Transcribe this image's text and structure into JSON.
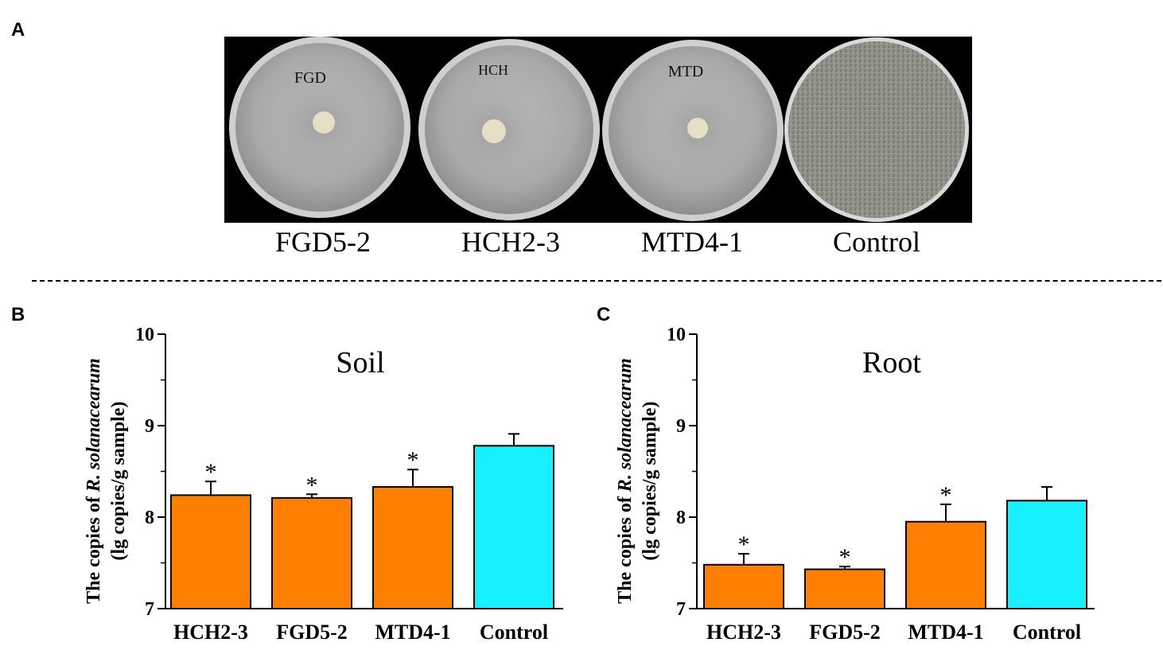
{
  "panel_a": {
    "letter": "A",
    "plate_marks": [
      "FGD",
      "HCH",
      "MTD",
      ""
    ],
    "labels": [
      "FGD5-2",
      "HCH2-3",
      "MTD4-1",
      "Control"
    ]
  },
  "panel_b": {
    "letter": "B"
  },
  "panel_c": {
    "letter": "C"
  },
  "chart_data": [
    {
      "type": "bar",
      "title": "Soil",
      "ylabel_line1_prefix": "The copies of ",
      "ylabel_line1_italic": "R. solanacearum",
      "ylabel_line2": "(lg copies/g sample)",
      "categories": [
        "HCH2-3",
        "FGD5-2",
        "MTD4-1",
        "Control"
      ],
      "values": [
        8.24,
        8.21,
        8.33,
        8.78
      ],
      "errors": [
        0.15,
        0.04,
        0.19,
        0.13
      ],
      "significance": [
        "*",
        "*",
        "*",
        ""
      ],
      "colors": [
        "#FF7F00",
        "#FF7F00",
        "#FF7F00",
        "#17F1FF"
      ],
      "yticks": [
        7,
        8,
        9,
        10
      ],
      "ylim": [
        7,
        10
      ],
      "grid": false
    },
    {
      "type": "bar",
      "title": "Root",
      "ylabel_line1_prefix": "The copies of ",
      "ylabel_line1_italic": "R. solanacearum",
      "ylabel_line2": "(lg copies/g sample)",
      "categories": [
        "HCH2-3",
        "FGD5-2",
        "MTD4-1",
        "Control"
      ],
      "values": [
        7.48,
        7.43,
        7.95,
        8.18
      ],
      "errors": [
        0.12,
        0.03,
        0.19,
        0.15
      ],
      "significance": [
        "*",
        "*",
        "*",
        ""
      ],
      "colors": [
        "#FF7F00",
        "#FF7F00",
        "#FF7F00",
        "#17F1FF"
      ],
      "yticks": [
        7,
        8,
        9,
        10
      ],
      "ylim": [
        7,
        10
      ],
      "grid": false
    }
  ]
}
